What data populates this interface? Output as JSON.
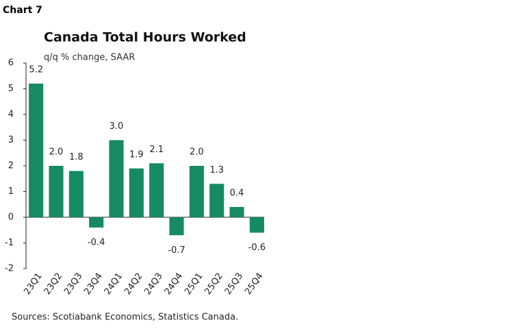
{
  "chart_data": {
    "type": "bar",
    "chart_label": "Chart 7",
    "title": "Canada Total Hours Worked",
    "subtitle": "q/q % change, SAAR",
    "categories": [
      "23Q1",
      "23Q2",
      "23Q3",
      "23Q4",
      "24Q1",
      "24Q2",
      "24Q3",
      "24Q4",
      "25Q1",
      "25Q2",
      "25Q3",
      "25Q4"
    ],
    "values": [
      5.2,
      2.0,
      1.8,
      -0.4,
      3.0,
      1.9,
      2.1,
      -0.7,
      2.0,
      1.3,
      0.4,
      -0.6
    ],
    "value_labels": [
      "5.2",
      "2.0",
      "1.8",
      "-0.4",
      "3.0",
      "1.9",
      "2.1",
      "-0.7",
      "2.0",
      "1.3",
      "0.4",
      "-0.6"
    ],
    "color": "#168a62",
    "ylim": [
      -2,
      6
    ],
    "yticks": [
      -2,
      -1,
      0,
      1,
      2,
      3,
      4,
      5,
      6
    ],
    "grid": false,
    "source": "Sources: Scotiabank Economics, Statistics Canada."
  }
}
